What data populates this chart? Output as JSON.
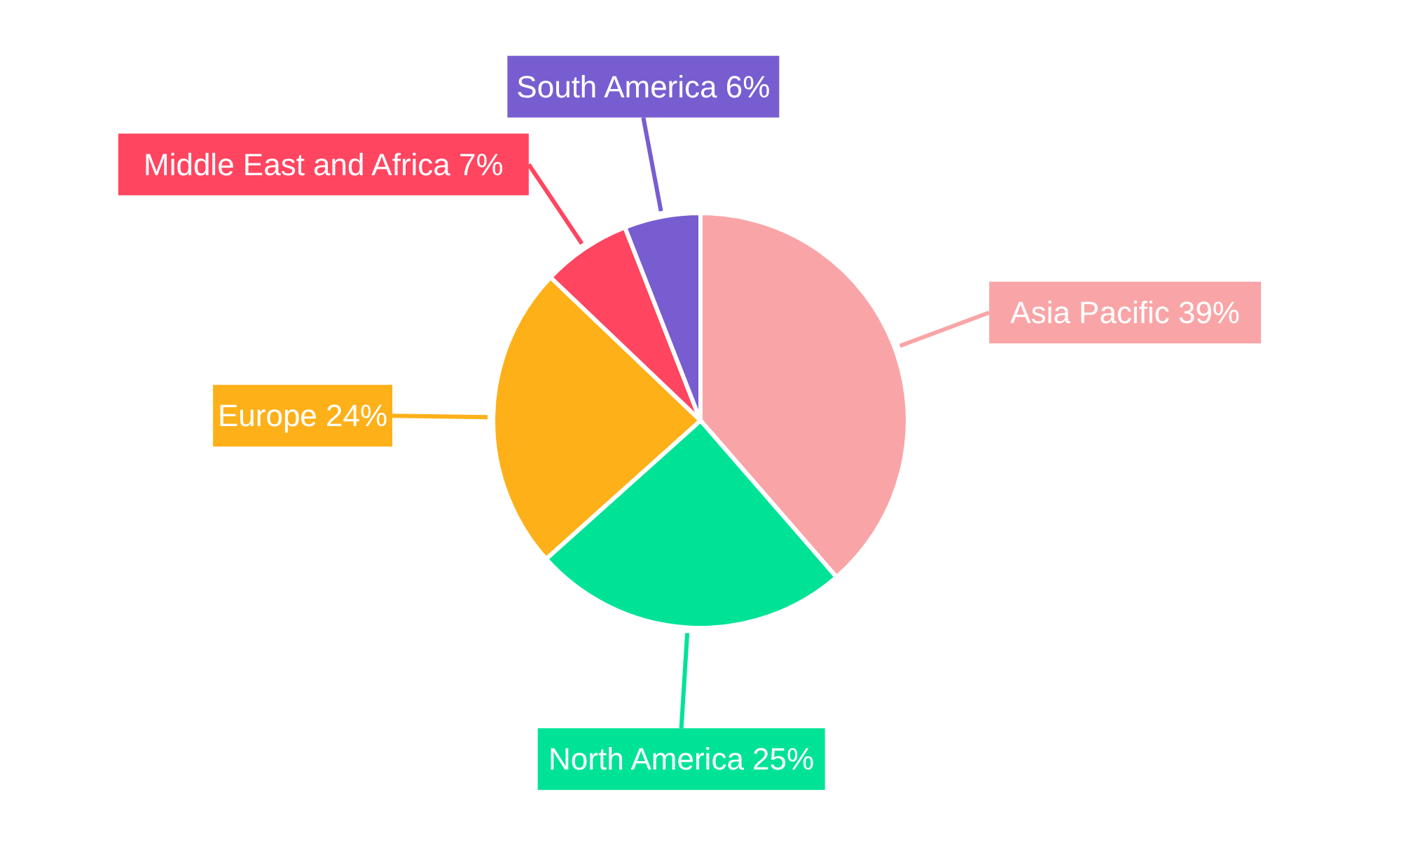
{
  "chart_data": {
    "type": "pie",
    "categories": [
      "Asia Pacific",
      "North America",
      "Europe",
      "Middle East and Africa",
      "South America"
    ],
    "values": [
      39,
      25,
      24,
      7,
      6
    ],
    "colors": [
      "#f9a5a7",
      "#00e396",
      "#feb019",
      "#ff4560",
      "#775dd0"
    ],
    "value_labels": [
      "39%",
      "25%",
      "24%",
      "7%",
      "6%"
    ]
  }
}
